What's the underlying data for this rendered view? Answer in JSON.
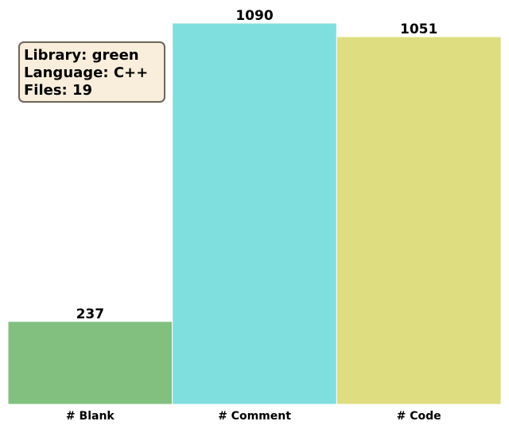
{
  "chart_data": {
    "type": "bar",
    "categories": [
      "# Blank",
      "# Comment",
      "# Code"
    ],
    "values": [
      237,
      1090,
      1051
    ],
    "colors": [
      "#81c07f",
      "#7fdfdf",
      "#dedd7f"
    ],
    "ylim": [
      0,
      1090
    ],
    "grid": false,
    "legend": "none"
  },
  "info_box": {
    "lines": [
      "Library: green",
      "Language: C++",
      "Files: 19"
    ],
    "background": "#f8eedb",
    "border": "#6e655a",
    "placement": "top-left"
  }
}
